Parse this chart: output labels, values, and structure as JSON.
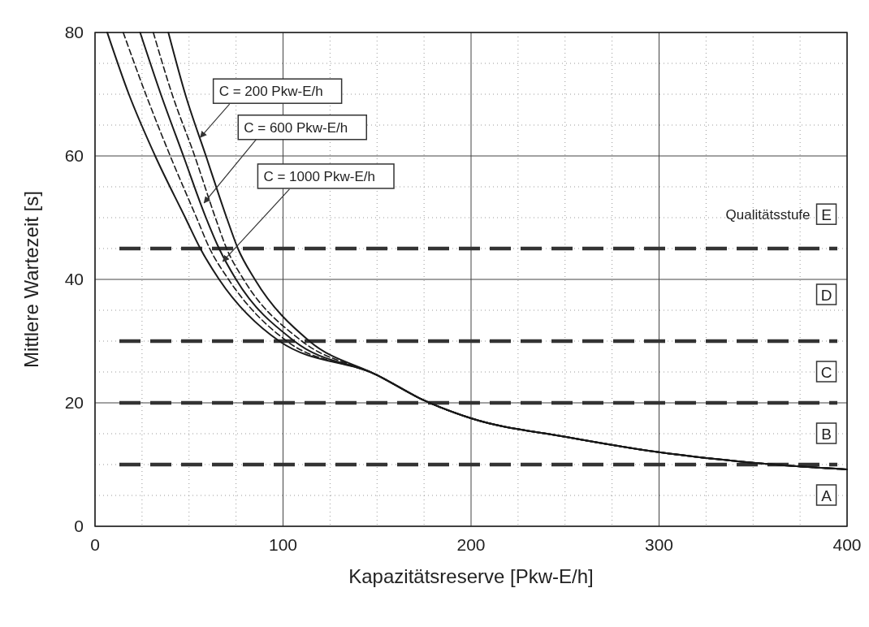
{
  "chart_data": {
    "type": "line",
    "xlabel": "Kapazitätsreserve [Pkw-E/h]",
    "ylabel": "Mittlere Wartezeit [s]",
    "xlim": [
      0,
      400
    ],
    "ylim": [
      0,
      80
    ],
    "xticks": [
      0,
      100,
      200,
      300,
      400
    ],
    "yticks": [
      0,
      20,
      40,
      60,
      80
    ],
    "grid": true,
    "marker": "none",
    "series": [
      {
        "color": "#1a1a1a",
        "line_style": "solid",
        "x": [
          6.5,
          18,
          32,
          48,
          56,
          66,
          98,
          150,
          175,
          200,
          250,
          300,
          350,
          400
        ],
        "values": [
          80,
          70,
          60,
          50,
          45,
          40,
          30,
          24.5,
          20.4,
          17.5,
          14.5,
          12,
          10.3,
          9.2
        ]
      },
      {
        "color": "#1a1a1a",
        "line_style": "dashed",
        "x": [
          15,
          27,
          40,
          54,
          61,
          71,
          102,
          150,
          175,
          200,
          250,
          300,
          350,
          400
        ],
        "values": [
          80,
          70,
          60,
          50,
          45,
          40,
          30,
          24.5,
          20.4,
          17.5,
          14.5,
          12,
          10.3,
          9.2
        ]
      },
      {
        "color": "#1a1a1a",
        "line_style": "solid",
        "x": [
          24,
          35,
          47,
          59,
          66,
          75,
          106,
          150,
          175,
          200,
          250,
          300,
          350,
          400
        ],
        "values": [
          80,
          70,
          60,
          50,
          45,
          40,
          30,
          24.5,
          20.4,
          17.5,
          14.5,
          12,
          10.3,
          9.2
        ]
      },
      {
        "color": "#1a1a1a",
        "line_style": "dashed",
        "x": [
          31,
          41,
          53,
          64,
          70,
          79,
          110,
          150,
          175,
          200,
          250,
          300,
          350,
          400
        ],
        "values": [
          80,
          70,
          60,
          50,
          45,
          40,
          30,
          24.5,
          20.4,
          17.5,
          14.5,
          12,
          10.3,
          9.2
        ]
      },
      {
        "color": "#1a1a1a",
        "line_style": "solid",
        "x": [
          39,
          48,
          59,
          70,
          76,
          85,
          114,
          150,
          175,
          200,
          250,
          300,
          350,
          400
        ],
        "values": [
          80,
          70,
          60,
          50,
          45,
          40,
          30,
          24.5,
          20.4,
          17.5,
          14.5,
          12,
          10.3,
          9.2
        ]
      }
    ],
    "ref_lines": [
      {
        "axis": "y",
        "value": 10,
        "color": "#333333",
        "line_style": "dashed"
      },
      {
        "axis": "y",
        "value": 20,
        "color": "#333333",
        "line_style": "dashed"
      },
      {
        "axis": "y",
        "value": 30,
        "color": "#333333",
        "line_style": "dashed"
      },
      {
        "axis": "y",
        "value": 45,
        "color": "#333333",
        "line_style": "dashed"
      }
    ],
    "annotations": [
      {
        "text": "C = 200 Pkw-E/h",
        "x": 56,
        "y": 63
      },
      {
        "text": "C = 600 Pkw-E/h",
        "x": 58,
        "y": 52.4
      },
      {
        "text": "C = 1000 Pkw-E/h",
        "x": 68,
        "y": 42.9
      },
      {
        "text": "A",
        "x": 389,
        "y": 5
      },
      {
        "text": "B",
        "x": 389,
        "y": 15
      },
      {
        "text": "C",
        "x": 389,
        "y": 25
      },
      {
        "text": "D",
        "x": 389,
        "y": 37.5
      },
      {
        "text": "E",
        "x": 389,
        "y": 50.5
      },
      "Qualitätsstufe"
    ]
  }
}
